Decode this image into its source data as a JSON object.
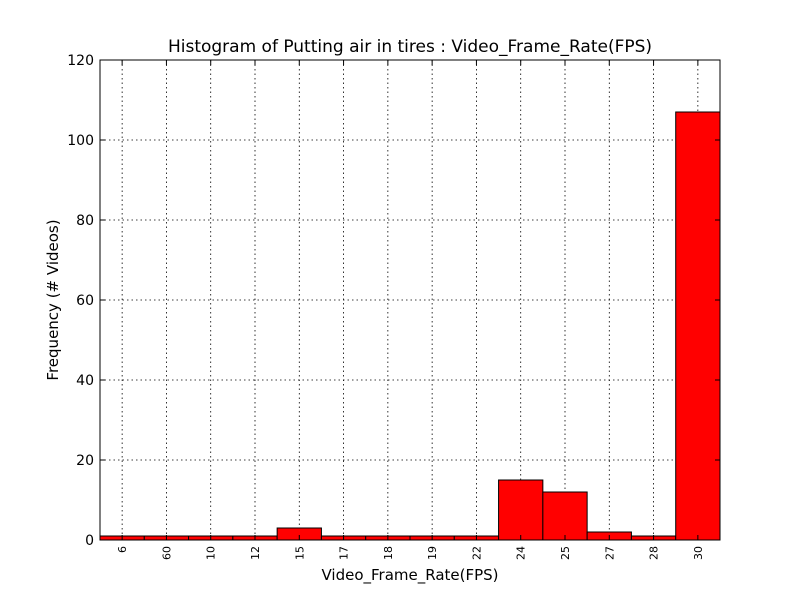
{
  "chart_data": {
    "type": "bar",
    "title": "Histogram of Putting air in tires : Video_Frame_Rate(FPS)",
    "xlabel": "Video_Frame_Rate(FPS)",
    "ylabel": "Frequency (# Videos)",
    "ylim": [
      0,
      120
    ],
    "yticks": [
      0,
      20,
      40,
      60,
      80,
      100,
      120
    ],
    "categories": [
      "6",
      "60",
      "10",
      "12",
      "15",
      "17",
      "18",
      "19",
      "22",
      "24",
      "25",
      "27",
      "28",
      "30"
    ],
    "values": [
      1,
      1,
      1,
      1,
      3,
      1,
      1,
      1,
      1,
      15,
      12,
      2,
      1,
      107
    ],
    "grid": true,
    "colors": {
      "bar": "#ff0000",
      "edge": "#000000",
      "grid": "#000000"
    }
  }
}
